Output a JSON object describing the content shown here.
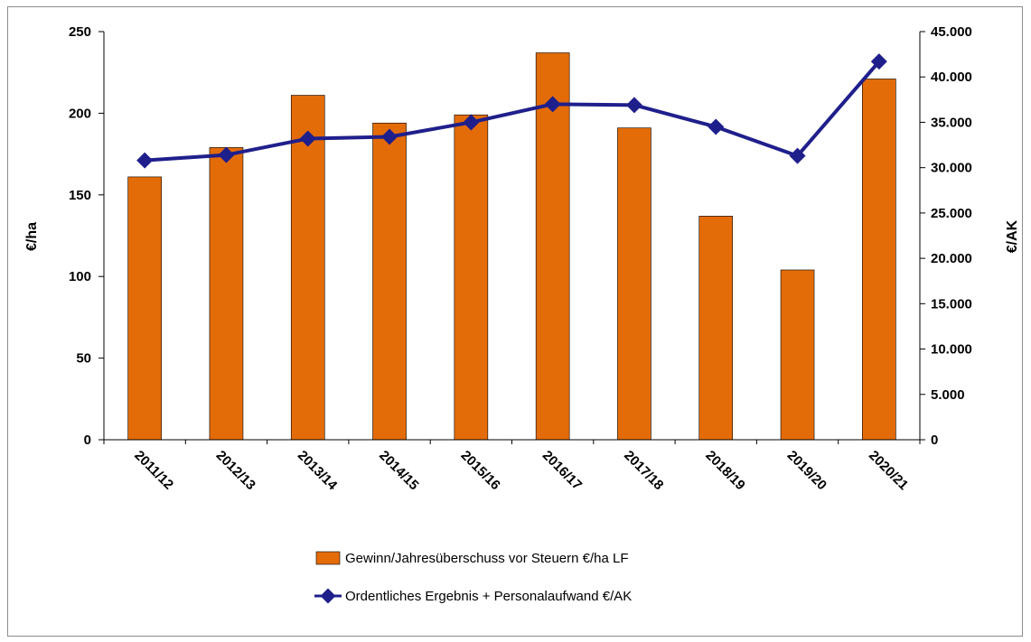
{
  "chart_data": {
    "type": "bar",
    "categories": [
      "2011/12",
      "2012/13",
      "2013/14",
      "2014/15",
      "2015/16",
      "2016/17",
      "2017/18",
      "2018/19",
      "2019/20",
      "2020/21"
    ],
    "series": [
      {
        "name": "Gewinn/Jahresüberschuss vor Steuern €/ha LF",
        "type": "bar",
        "axis": "left",
        "color": "#e36c09",
        "values": [
          161,
          179,
          211,
          194,
          199,
          237,
          191,
          137,
          104,
          221
        ]
      },
      {
        "name": "Ordentliches Ergebnis + Personalaufwand €/AK",
        "type": "line",
        "axis": "right",
        "color": "#1f1f8c",
        "values": [
          30800,
          31400,
          33200,
          33400,
          35000,
          37000,
          36900,
          34500,
          31300,
          41700
        ]
      }
    ],
    "ylabel_left": "€/ha",
    "ylabel_right": "€/AK",
    "ylim_left": [
      0,
      250
    ],
    "ylim_right": [
      0,
      45000
    ],
    "yticks_left": [
      "0",
      "50",
      "100",
      "150",
      "200",
      "250"
    ],
    "yticks_right": [
      "0",
      "5.000",
      "10.000",
      "15.000",
      "20.000",
      "25.000",
      "30.000",
      "35.000",
      "40.000",
      "45.000"
    ],
    "grid": false,
    "legend_position": "bottom"
  }
}
